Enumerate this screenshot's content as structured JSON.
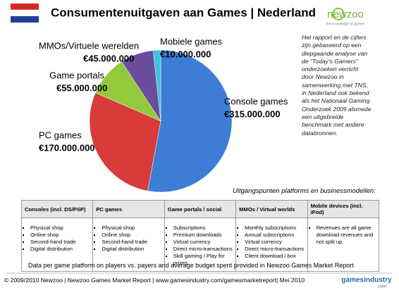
{
  "header": {
    "title": "Consumentenuitgaven aan Games | Nederland",
    "logo": "newzoo",
    "logo_tagline": "the knowledge of games"
  },
  "chart_data": {
    "type": "pie",
    "categories": [
      "Console games",
      "PC games",
      "Game portals",
      "MMOs/Virtuele werelden",
      "Mobiele games"
    ],
    "values": [
      315000000,
      170000000,
      55000000,
      45000000,
      10000000
    ],
    "value_labels": [
      "€315.000.000",
      "€170.000.000",
      "€55.000.000",
      "€45.000.000",
      "€10.000.000"
    ],
    "colors": [
      "#3d7dd6",
      "#d93a3a",
      "#93c93c",
      "#6b4d9d",
      "#3ec3da"
    ]
  },
  "note": [
    "Het rapport en de cijfers",
    "zijn gebaseerd op een",
    "diepgaande analyse van",
    "de “Today's Gamers”",
    "onderzoeken verricht",
    "door Newzoo in",
    "samenwerking met TNS,",
    "in Nederland ook bekend",
    "als het Nationaal Gaming",
    "Onderzoek 2009 alsmede",
    "een uitgebreide",
    "benchmark met andere",
    "databronnen."
  ],
  "table": {
    "caption": "Uitgangspunten platforms en businessmodellen:",
    "headers": [
      "Consoles (incl. DS/PSP)",
      "PC games",
      "Game portals / social",
      "MMOs / Virtual worlds",
      "Mobile devices (incl. iPod)"
    ],
    "cells": [
      [
        "Physical shop",
        "Online shop",
        "Second-hand trade",
        "Digital distribution"
      ],
      [
        "Physical shop",
        "Online shop",
        "Second-hand trade",
        "Digital distribution"
      ],
      [
        "Subscriptions",
        "Premium downloads",
        "Virtual currency",
        "Direct micro-transactions",
        "Skill gaming / Play for prizes"
      ],
      [
        "Monthly subscriptions",
        "Annual subscriptions",
        "Virtual currency",
        "Direct micro-transactions",
        "Client download / box"
      ],
      [
        "Revenues are all game download revenues and not split up."
      ]
    ]
  },
  "source": "Data per game platform on players vs. payers and average budget spent provided in Newzoo Games Market Report",
  "footer": {
    "text": "© 2009/2010 Newzoo  |  Newzoo Games Market Report  |  www.gamesindustry.com/gamesmarketreport|  Mei 2010",
    "logo": "gamesindustry",
    "logo_suffix": ".com"
  }
}
